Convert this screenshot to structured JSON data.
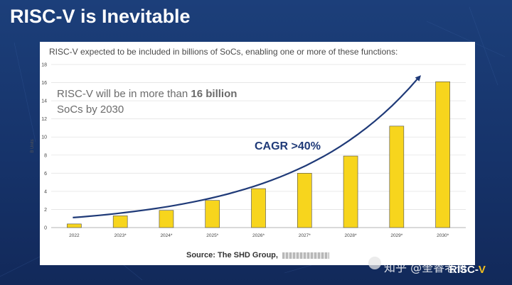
{
  "slide": {
    "title": "RISC-V is Inevitable"
  },
  "chart_data": {
    "type": "bar",
    "header": "RISC-V expected to be included in billions of SoCs, enabling one or more of these functions:",
    "categories": [
      "2022",
      "2023*",
      "2024*",
      "2025*",
      "2026*",
      "2027*",
      "2028*",
      "2029*",
      "2030*"
    ],
    "values": [
      0.4,
      1.3,
      1.9,
      3.0,
      4.3,
      6.0,
      7.9,
      11.2,
      16.1
    ],
    "ylabel": "B Units",
    "ylim": [
      0,
      18
    ],
    "yticks": [
      0,
      2,
      4,
      6,
      8,
      10,
      12,
      14,
      16,
      18
    ],
    "bar_color": "#f7d51d",
    "bar_outline_color": "#4b4b4b",
    "trend_color": "#1f3a78",
    "annotation": {
      "line1": "RISC-V will be in more than",
      "highlight": "16 billion",
      "line2": "SoCs by 2030"
    },
    "trend_label": "CAGR >40%",
    "source": "Source: The SHD Group,"
  },
  "watermark": {
    "text": "知乎 @奎睿老哥"
  },
  "brand": {
    "text_main": "RISC-",
    "text_v": "V"
  },
  "colors": {
    "background": "#17356c",
    "panel": "#ffffff"
  }
}
